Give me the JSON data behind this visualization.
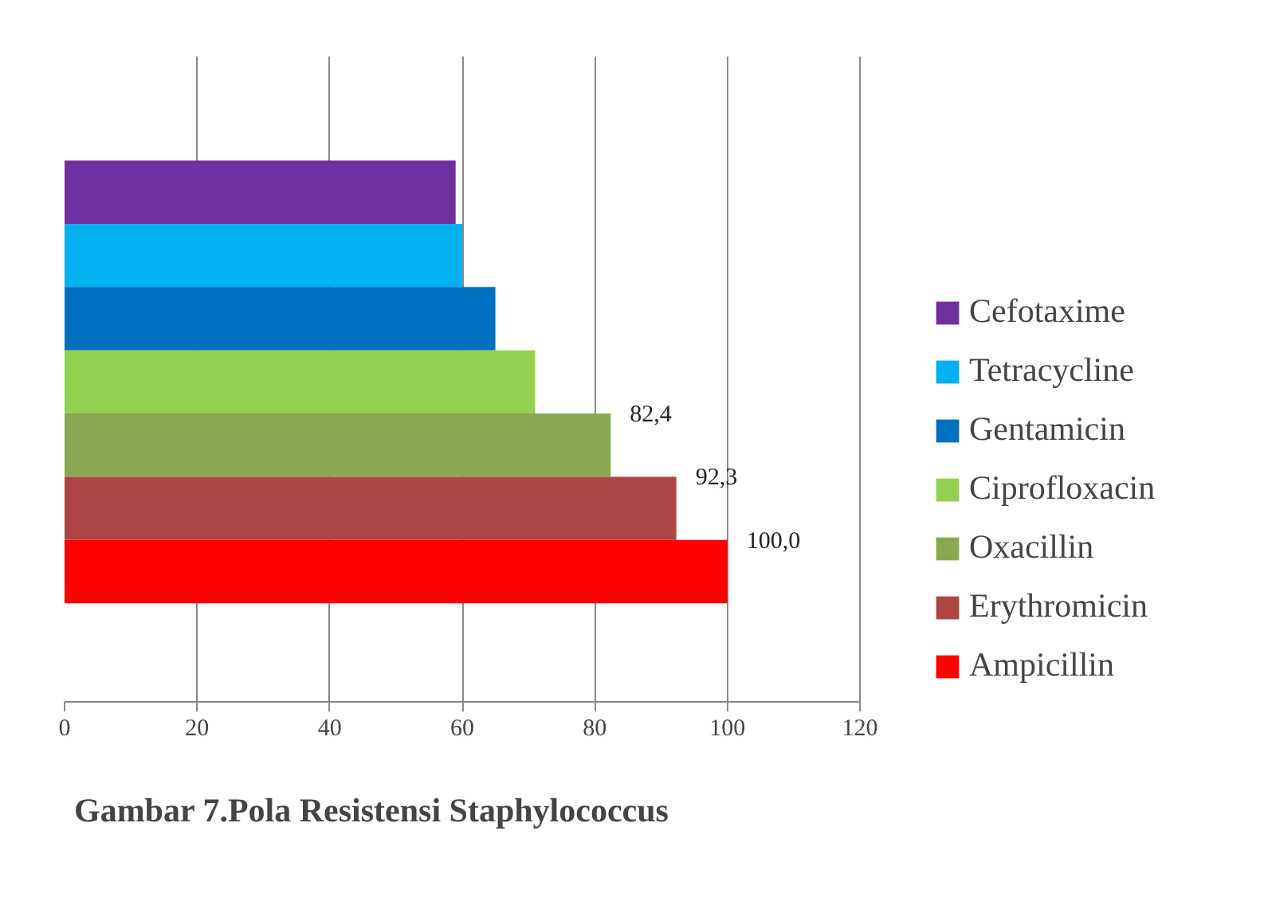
{
  "chart_data": {
    "type": "bar",
    "orientation": "horizontal",
    "categories": [
      null
    ],
    "series": [
      {
        "name": "Cefotaxime",
        "color": "#7030a0",
        "values": [
          59
        ]
      },
      {
        "name": "Tetracycline",
        "color": "#00b0f0",
        "values": [
          60
        ]
      },
      {
        "name": "Gentamicin",
        "color": "#0070c0",
        "values": [
          65
        ]
      },
      {
        "name": "Ciprofloxacin",
        "color": "#92d050",
        "values": [
          71
        ]
      },
      {
        "name": "Oxacillin",
        "color": "#8aa752",
        "values": [
          82.4
        ],
        "value_labels": [
          "82,4"
        ]
      },
      {
        "name": "Erythromicin",
        "color": "#ae4545",
        "values": [
          92.3
        ],
        "value_labels": [
          "92,3"
        ]
      },
      {
        "name": "Ampicillin",
        "color": "#ff0000",
        "values": [
          100.0
        ],
        "value_labels": [
          "100,0"
        ]
      }
    ],
    "xlim": [
      0,
      120
    ],
    "xticks": [
      0,
      20,
      40,
      60,
      80,
      100,
      120
    ],
    "grid": "x",
    "legend": "right",
    "tick_labels": "x",
    "annotations": [
      "Gambar 7.Pola Resistensi Staphylococcus"
    ]
  }
}
